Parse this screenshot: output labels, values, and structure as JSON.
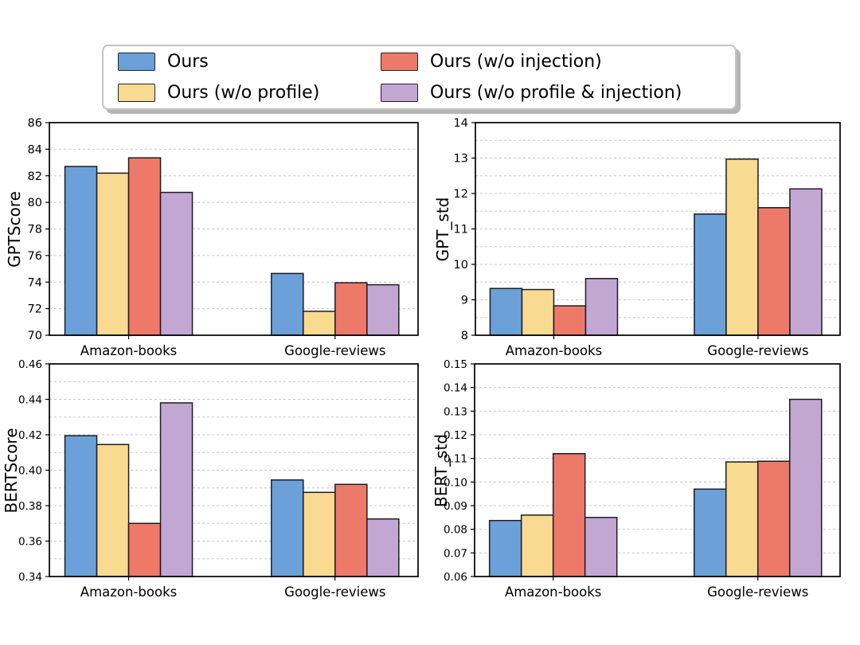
{
  "figure": {
    "background": "#ffffff"
  },
  "legend": {
    "items": [
      {
        "label": "Ours",
        "color": "#6ba1d8"
      },
      {
        "label": "Ours (w/o profile)",
        "color": "#f8da90"
      },
      {
        "label": "Ours (w/o injection)",
        "color": "#ed7a69"
      },
      {
        "label": "Ours (w/o profile & injection)",
        "color": "#c3a7d3"
      }
    ],
    "position": "upper center, 2 columns, fancybox with shadow"
  },
  "styles": {
    "grid_color": "#c8c8c8",
    "spine_color": "#000000",
    "bar_edge_color": "#1c1c24",
    "text_color": "#000000"
  },
  "chart_data": [
    {
      "type": "bar",
      "ylabel": "GPTScore",
      "categories": [
        "Amazon-books",
        "Google-reviews"
      ],
      "series": [
        {
          "name": "Ours",
          "values": [
            82.7,
            74.65
          ]
        },
        {
          "name": "Ours (w/o profile)",
          "values": [
            82.2,
            71.8
          ]
        },
        {
          "name": "Ours (w/o injection)",
          "values": [
            83.35,
            73.95
          ]
        },
        {
          "name": "Ours (w/o profile & injection)",
          "values": [
            80.75,
            73.8
          ]
        }
      ],
      "ylim": [
        70,
        86
      ],
      "ytick_step": 2,
      "grid_step": 2,
      "decimals": 0,
      "grid": "dashed horizontal",
      "xlabel": ""
    },
    {
      "type": "bar",
      "ylabel": "GPT_std",
      "categories": [
        "Amazon-books",
        "Google-reviews"
      ],
      "series": [
        {
          "name": "Ours",
          "values": [
            9.32,
            11.42
          ]
        },
        {
          "name": "Ours (w/o profile)",
          "values": [
            9.29,
            12.97
          ]
        },
        {
          "name": "Ours (w/o injection)",
          "values": [
            8.83,
            11.6
          ]
        },
        {
          "name": "Ours (w/o profile & injection)",
          "values": [
            9.6,
            12.13
          ]
        }
      ],
      "ylim": [
        8,
        14
      ],
      "ytick_step": 1,
      "grid_step": 0.5,
      "decimals": 0,
      "grid": "dashed horizontal",
      "xlabel": ""
    },
    {
      "type": "bar",
      "ylabel": "BERTScore",
      "categories": [
        "Amazon-books",
        "Google-reviews"
      ],
      "series": [
        {
          "name": "Ours",
          "values": [
            0.4195,
            0.3945
          ]
        },
        {
          "name": "Ours (w/o profile)",
          "values": [
            0.4145,
            0.3875
          ]
        },
        {
          "name": "Ours (w/o injection)",
          "values": [
            0.37,
            0.392
          ]
        },
        {
          "name": "Ours (w/o profile & injection)",
          "values": [
            0.438,
            0.3725
          ]
        }
      ],
      "ylim": [
        0.34,
        0.46
      ],
      "ytick_step": 0.02,
      "grid_step": 0.01,
      "decimals": 2,
      "grid": "dashed horizontal",
      "xlabel": ""
    },
    {
      "type": "bar",
      "ylabel": "BERT_std",
      "categories": [
        "Amazon-books",
        "Google-reviews"
      ],
      "series": [
        {
          "name": "Ours",
          "values": [
            0.0837,
            0.097
          ]
        },
        {
          "name": "Ours (w/o profile)",
          "values": [
            0.086,
            0.1085
          ]
        },
        {
          "name": "Ours (w/o injection)",
          "values": [
            0.112,
            0.1088
          ]
        },
        {
          "name": "Ours (w/o profile & injection)",
          "values": [
            0.085,
            0.135
          ]
        }
      ],
      "ylim": [
        0.06,
        0.15
      ],
      "ytick_step": 0.01,
      "grid_step": 0.01,
      "decimals": 2,
      "grid": "dashed horizontal",
      "xlabel": ""
    }
  ]
}
